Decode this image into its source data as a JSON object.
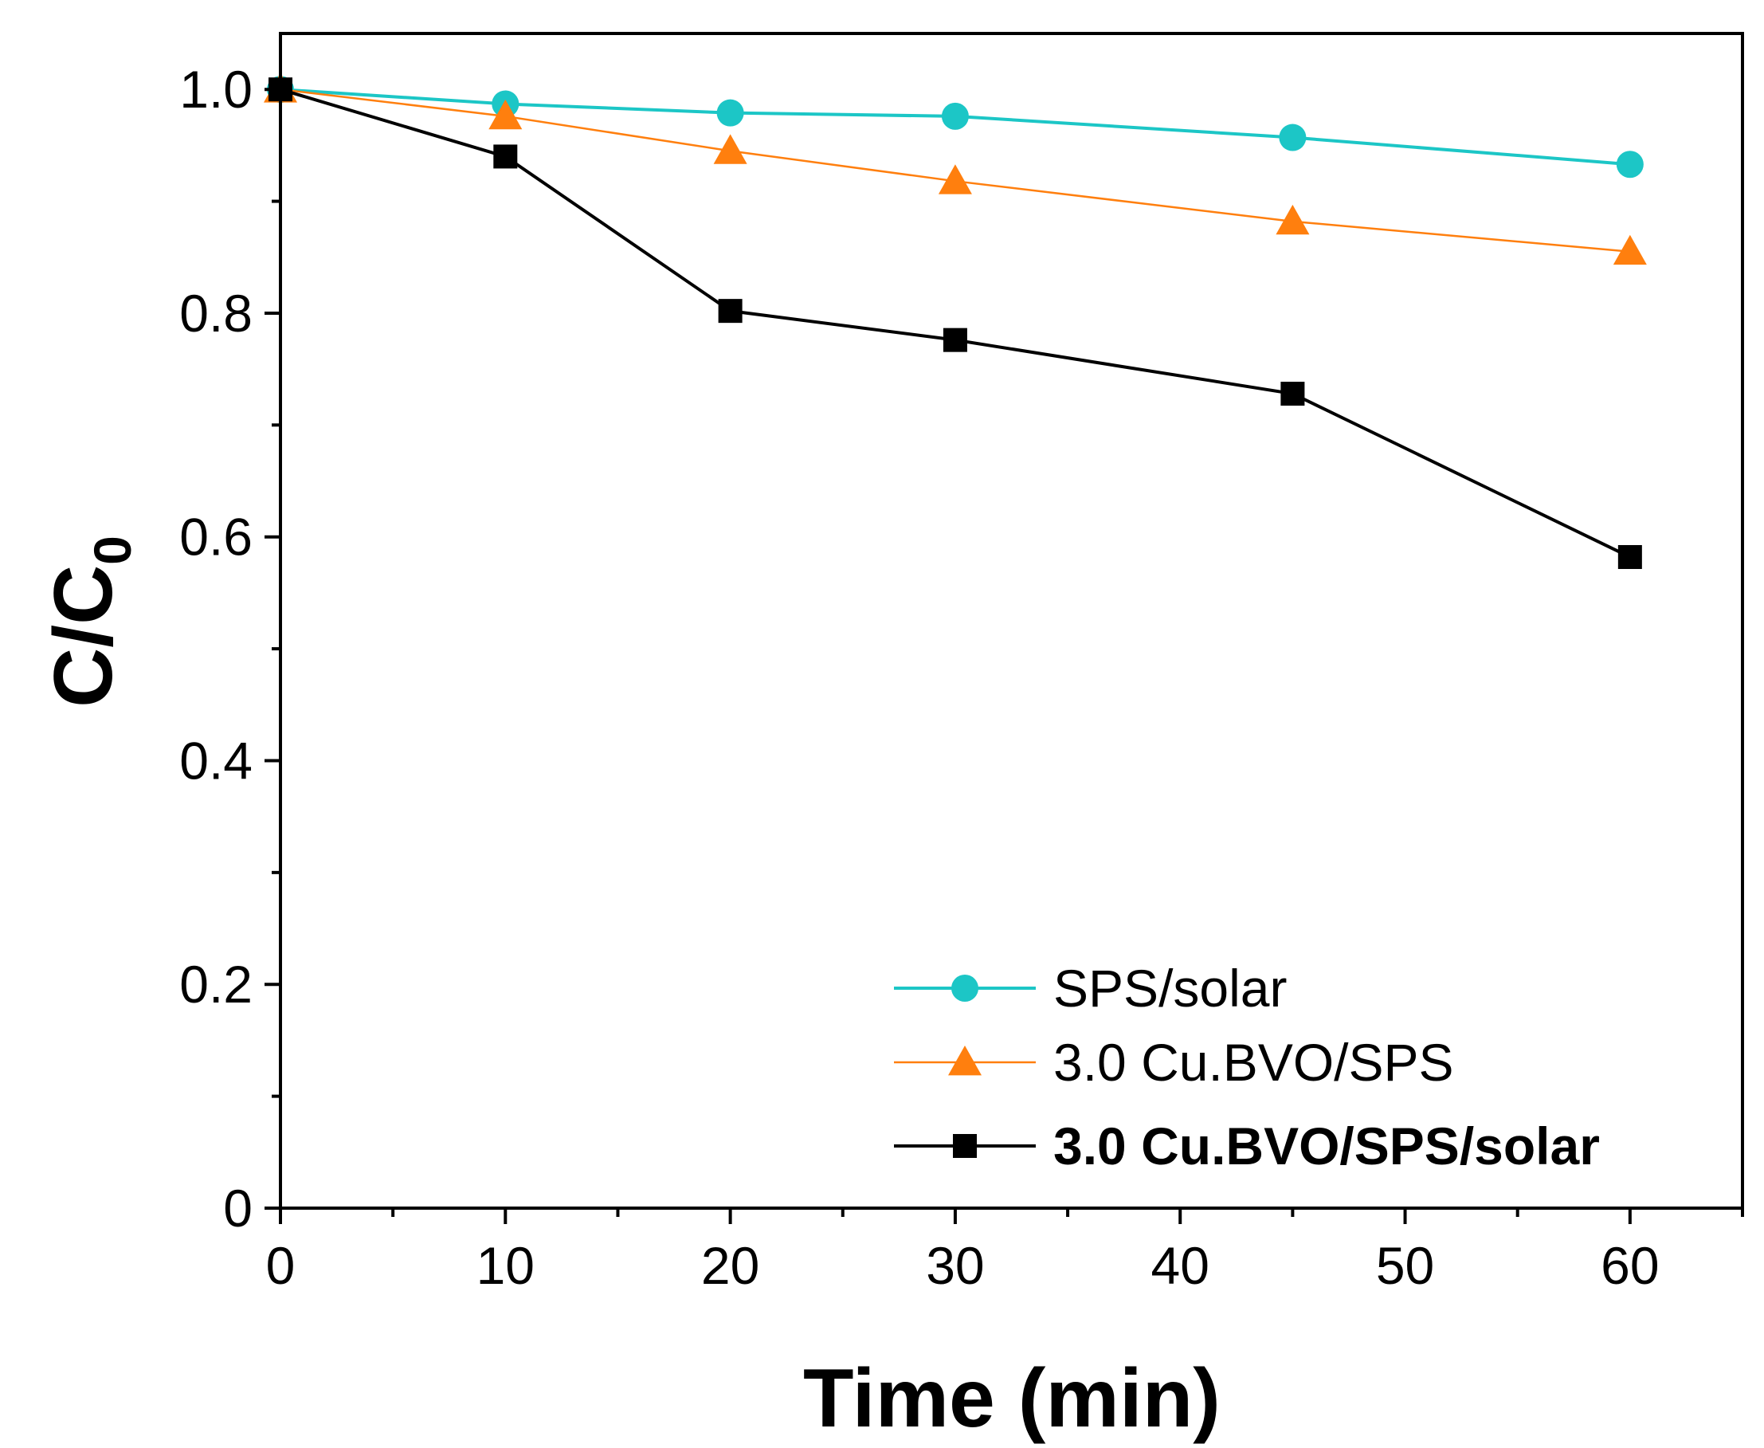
{
  "chart_data": {
    "type": "line",
    "title": "",
    "xlabel": "Time (min)",
    "ylabel": "C/C",
    "ylabel_subscript": "0",
    "xlim": [
      0,
      65
    ],
    "ylim": [
      0,
      1.05
    ],
    "x_ticks": [
      0,
      10,
      20,
      30,
      40,
      50,
      60
    ],
    "x_tick_labels": [
      "0",
      "10",
      "20",
      "30",
      "40",
      "50",
      "60"
    ],
    "x_minor_ticks": [
      5,
      15,
      25,
      35,
      45,
      55,
      65
    ],
    "y_ticks": [
      0,
      0.2,
      0.4,
      0.6,
      0.8,
      1.0
    ],
    "y_tick_labels": [
      "0",
      "0.2",
      "0.4",
      "0.6",
      "0.8",
      "1.0"
    ],
    "y_minor_ticks": [
      0.1,
      0.3,
      0.5,
      0.7,
      0.9
    ],
    "grid": false,
    "legend_position": "bottom-right",
    "series": [
      {
        "name": "SPS/solar",
        "color": "#1cc6c6",
        "marker": "circle",
        "bold": false,
        "x": [
          0,
          10,
          20,
          30,
          45,
          60
        ],
        "values": [
          1.0,
          0.987,
          0.979,
          0.976,
          0.957,
          0.933
        ]
      },
      {
        "name": "3.0 Cu.BVO/SPS",
        "color": "#ff7f0e",
        "marker": "triangle",
        "bold": false,
        "x": [
          0,
          10,
          20,
          30,
          45,
          60
        ],
        "values": [
          1.0,
          0.976,
          0.945,
          0.918,
          0.882,
          0.855
        ]
      },
      {
        "name": "3.0 Cu.BVO/SPS/solar",
        "color": "#000000",
        "marker": "square",
        "bold": true,
        "x": [
          0,
          10,
          20,
          30,
          45,
          60
        ],
        "values": [
          1.0,
          0.94,
          0.802,
          0.776,
          0.728,
          0.582
        ]
      }
    ]
  }
}
